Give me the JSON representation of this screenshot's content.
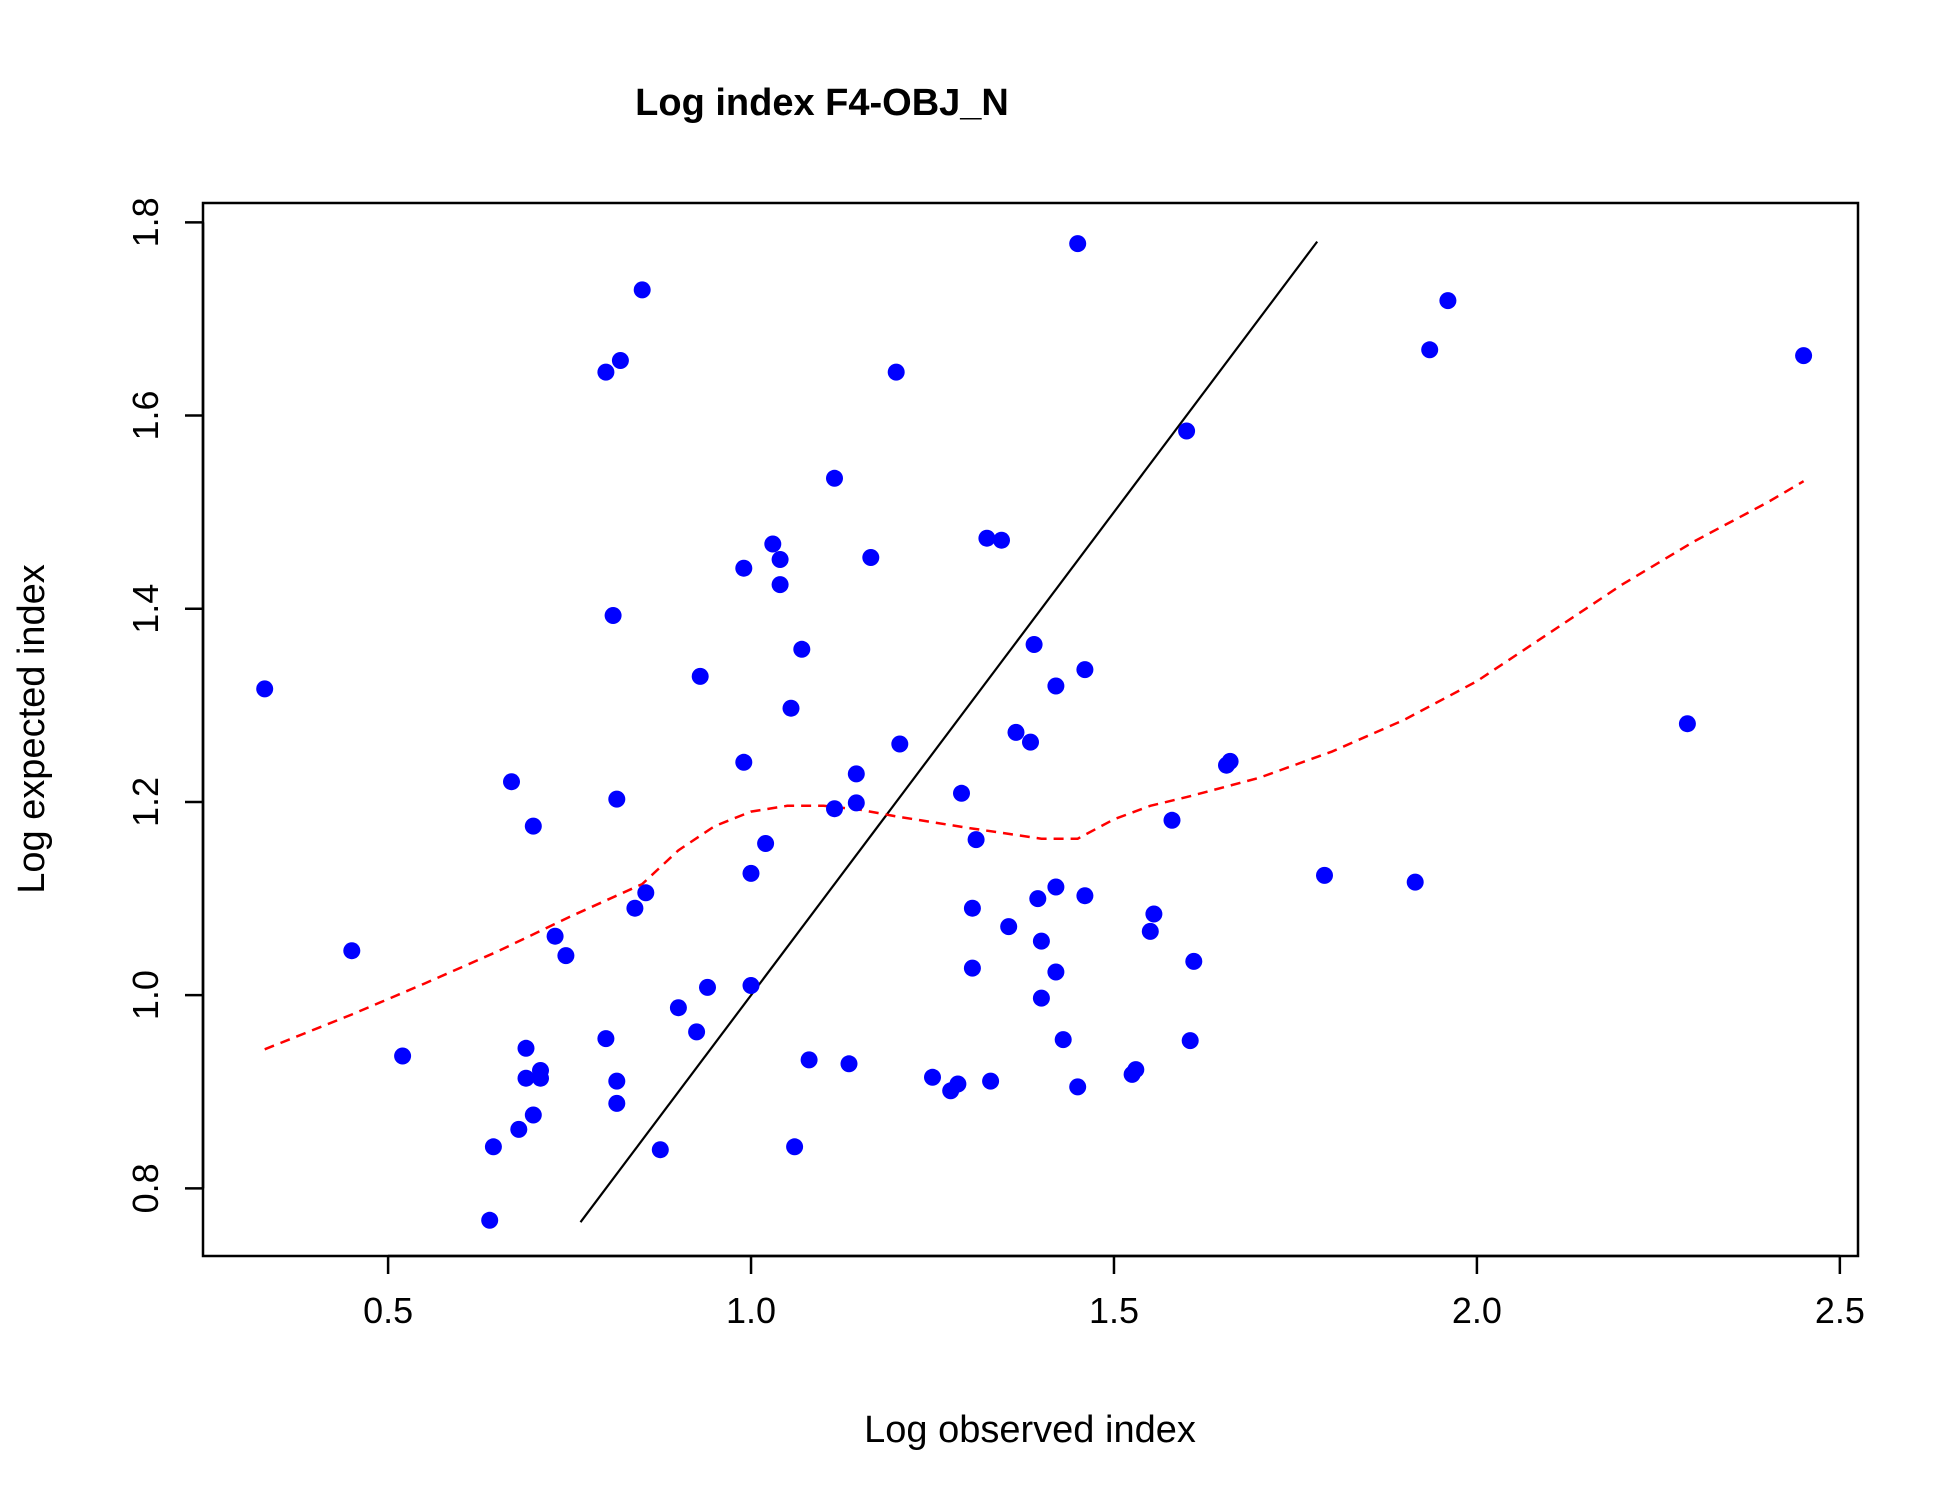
{
  "chart_data": {
    "type": "scatter",
    "title": "Log index F4-OBJ_N",
    "xlabel": "Log observed index",
    "ylabel": "Log expected index",
    "xlim": [
      0.245,
      2.525
    ],
    "ylim": [
      0.73,
      1.82
    ],
    "x_ticks": [
      0.5,
      1.0,
      1.5,
      2.0,
      2.5
    ],
    "x_tick_labels": [
      "0.5",
      "1.0",
      "1.5",
      "2.0",
      "2.5"
    ],
    "y_ticks": [
      0.8,
      1.0,
      1.2,
      1.4,
      1.6,
      1.8
    ],
    "y_tick_labels": [
      "0.8",
      "1.0",
      "1.2",
      "1.4",
      "1.6",
      "1.8"
    ],
    "grid": false,
    "legend": "none",
    "colors": {
      "points": "#0000ff",
      "identity_line": "#000000",
      "smooth_line": "#ff0000"
    },
    "series": [
      {
        "kind": "points",
        "x": [
          0.33,
          0.45,
          0.52,
          0.64,
          0.645,
          0.67,
          0.68,
          0.69,
          0.69,
          0.7,
          0.7,
          0.71,
          0.71,
          0.73,
          0.745,
          0.8,
          0.8,
          0.81,
          0.815,
          0.815,
          0.815,
          0.82,
          0.84,
          0.85,
          0.855,
          0.875,
          0.9,
          0.925,
          0.93,
          0.94,
          0.99,
          0.99,
          1.0,
          1.0,
          1.02,
          1.03,
          1.04,
          1.04,
          1.055,
          1.06,
          1.07,
          1.08,
          1.115,
          1.115,
          1.135,
          1.145,
          1.145,
          1.165,
          1.205,
          1.2,
          1.25,
          1.275,
          1.285,
          1.29,
          1.305,
          1.305,
          1.31,
          1.325,
          1.33,
          1.345,
          1.355,
          1.365,
          1.385,
          1.39,
          1.395,
          1.4,
          1.4,
          1.42,
          1.42,
          1.42,
          1.43,
          1.45,
          1.45,
          1.46,
          1.46,
          1.525,
          1.53,
          1.55,
          1.555,
          1.58,
          1.6,
          1.605,
          1.61,
          1.655,
          1.66,
          1.79,
          1.915,
          1.935,
          1.96,
          2.29,
          2.45
        ],
        "y": [
          1.317,
          1.046,
          0.937,
          0.767,
          0.843,
          1.221,
          0.861,
          0.945,
          0.914,
          0.876,
          1.175,
          0.922,
          0.914,
          1.061,
          1.041,
          1.645,
          0.955,
          1.393,
          0.888,
          0.911,
          1.203,
          1.657,
          1.09,
          1.73,
          1.106,
          0.84,
          0.987,
          0.962,
          1.33,
          1.008,
          1.442,
          1.241,
          1.126,
          1.01,
          1.157,
          1.467,
          1.451,
          1.425,
          1.297,
          0.843,
          1.358,
          0.933,
          1.535,
          1.193,
          0.929,
          1.229,
          1.199,
          1.453,
          1.26,
          1.645,
          0.915,
          0.901,
          0.908,
          1.209,
          1.09,
          1.028,
          1.161,
          1.473,
          0.911,
          1.471,
          1.071,
          1.272,
          1.262,
          1.363,
          1.1,
          1.056,
          0.997,
          1.32,
          1.112,
          1.024,
          0.954,
          1.778,
          0.905,
          1.337,
          1.103,
          0.918,
          0.923,
          1.066,
          1.084,
          1.181,
          1.584,
          0.953,
          1.035,
          1.238,
          1.242,
          1.124,
          1.117,
          1.668,
          1.719,
          1.281,
          1.662
        ]
      },
      {
        "kind": "line",
        "style": "solid",
        "x": [
          0.765,
          1.78
        ],
        "y": [
          0.765,
          1.78
        ]
      },
      {
        "kind": "line",
        "style": "dashed",
        "x": [
          0.33,
          0.45,
          0.55,
          0.65,
          0.75,
          0.85,
          0.9,
          0.95,
          1.0,
          1.05,
          1.1,
          1.15,
          1.2,
          1.3,
          1.4,
          1.45,
          1.5,
          1.55,
          1.6,
          1.7,
          1.8,
          1.9,
          2.0,
          2.1,
          2.2,
          2.3,
          2.4,
          2.45
        ],
        "y": [
          0.944,
          0.98,
          1.012,
          1.045,
          1.081,
          1.115,
          1.15,
          1.175,
          1.19,
          1.196,
          1.196,
          1.192,
          1.185,
          1.173,
          1.162,
          1.162,
          1.182,
          1.196,
          1.205,
          1.225,
          1.252,
          1.285,
          1.325,
          1.375,
          1.425,
          1.47,
          1.51,
          1.532
        ]
      }
    ]
  }
}
